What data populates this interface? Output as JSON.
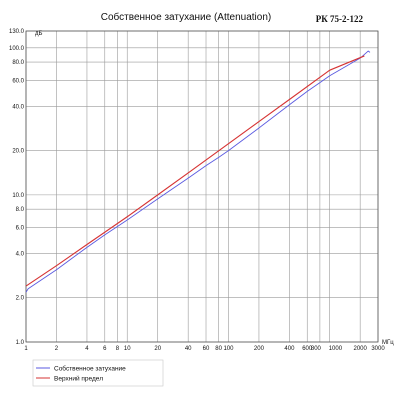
{
  "chart_data": {
    "type": "line",
    "title": "Собственное затухание (Attenuation)",
    "model": "РК 75-2-122",
    "x_unit": "МГц",
    "y_unit": "дБ",
    "x_scale": "log",
    "y_scale": "log",
    "xlim": [
      1,
      3000
    ],
    "ylim": [
      1,
      130
    ],
    "grid": true,
    "legend_position": "bottom-left",
    "x_ticks": [
      1,
      2,
      4,
      6,
      8,
      10,
      20,
      40,
      60,
      80,
      100,
      200,
      400,
      600,
      800,
      1000,
      2000,
      3000
    ],
    "x_tick_labels": [
      "1",
      "2",
      "4",
      "6",
      "8",
      "10",
      "20",
      "40",
      "60",
      "80",
      "100",
      "200",
      "400",
      "600",
      "800",
      "1000",
      "2000",
      "3000"
    ],
    "y_ticks": [
      1,
      2,
      4,
      6,
      8,
      10,
      20,
      40,
      60,
      80,
      100,
      130
    ],
    "y_tick_labels": [
      "1.0",
      "2.0",
      "4.0",
      "6.0",
      "8.0",
      "10.0",
      "20.0",
      "40.0",
      "60.0",
      "80.0",
      "100.0",
      "130.0"
    ],
    "series": [
      {
        "name": "Собственное затухание",
        "color": "#5a5ae0",
        "x": [
          1,
          1.05,
          2,
          4,
          6,
          8,
          10,
          20,
          40,
          60,
          80,
          100,
          200,
          400,
          600,
          800,
          1000,
          2000,
          2400,
          2500
        ],
        "y": [
          2.18,
          2.3,
          3.1,
          4.4,
          5.35,
          6.1,
          6.75,
          9.4,
          13.0,
          15.8,
          18.0,
          20.0,
          28.5,
          41.0,
          50.5,
          58.0,
          64.5,
          85.0,
          95.0,
          93.0
        ]
      },
      {
        "name": "Верхний предел",
        "color": "#d63333",
        "x": [
          1,
          2,
          4,
          10,
          20,
          40,
          100,
          200,
          400,
          1000,
          2200
        ],
        "y": [
          2.4,
          3.3,
          4.6,
          7.1,
          10.0,
          14.1,
          22.3,
          31.5,
          44.5,
          70.4,
          88.0
        ]
      }
    ]
  }
}
